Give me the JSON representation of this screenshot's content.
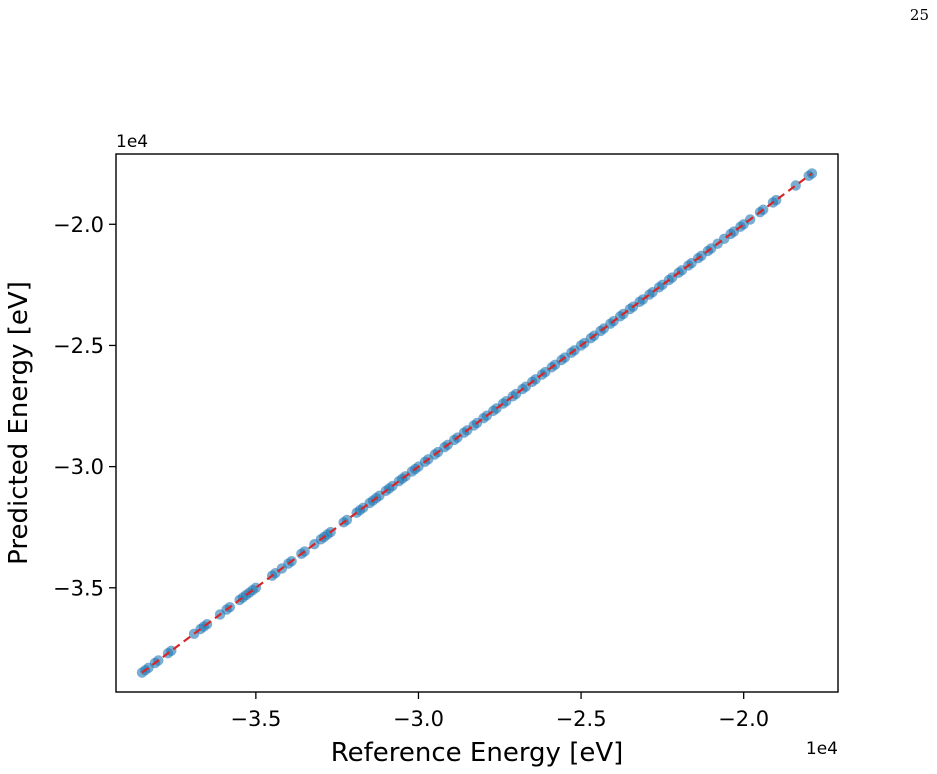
{
  "page": {
    "number": "25"
  },
  "chart_data": {
    "type": "scatter",
    "xlabel": "Reference Energy [eV]",
    "ylabel": "Predicted Energy [eV]",
    "x_offset_label": "1e4",
    "y_offset_label": "1e4",
    "xlim": [
      -3.93,
      -1.71
    ],
    "ylim": [
      -3.93,
      -1.71
    ],
    "x_ticks": [
      -3.5,
      -3.0,
      -2.5,
      -2.0
    ],
    "x_tick_labels": [
      "−3.5",
      "−3.0",
      "−2.5",
      "−2.0"
    ],
    "y_ticks": [
      -3.5,
      -3.0,
      -2.5,
      -2.0
    ],
    "y_tick_labels": [
      "−3.5",
      "−3.0",
      "−2.5",
      "−2.0"
    ],
    "grid": false,
    "reference_line": {
      "style": "dashed",
      "color": "#d62728",
      "from": -3.85,
      "to": -1.79
    },
    "point_color": "#1f77b4",
    "point_alpha": 0.6,
    "series": [
      {
        "points": [
          [
            -3.85,
            -3.85
          ],
          [
            -3.84,
            -3.84
          ],
          [
            -3.83,
            -3.83
          ],
          [
            -3.81,
            -3.81
          ],
          [
            -3.8,
            -3.8
          ],
          [
            -3.77,
            -3.77
          ],
          [
            -3.76,
            -3.76
          ],
          [
            -3.69,
            -3.69
          ],
          [
            -3.67,
            -3.67
          ],
          [
            -3.66,
            -3.66
          ],
          [
            -3.65,
            -3.65
          ],
          [
            -3.61,
            -3.61
          ],
          [
            -3.59,
            -3.59
          ],
          [
            -3.58,
            -3.58
          ],
          [
            -3.55,
            -3.55
          ],
          [
            -3.54,
            -3.54
          ],
          [
            -3.53,
            -3.53
          ],
          [
            -3.52,
            -3.52
          ],
          [
            -3.51,
            -3.51
          ],
          [
            -3.5,
            -3.5
          ],
          [
            -3.45,
            -3.45
          ],
          [
            -3.44,
            -3.44
          ],
          [
            -3.42,
            -3.42
          ],
          [
            -3.4,
            -3.4
          ],
          [
            -3.39,
            -3.39
          ],
          [
            -3.36,
            -3.36
          ],
          [
            -3.35,
            -3.35
          ],
          [
            -3.32,
            -3.32
          ],
          [
            -3.3,
            -3.3
          ],
          [
            -3.29,
            -3.29
          ],
          [
            -3.28,
            -3.28
          ],
          [
            -3.27,
            -3.27
          ],
          [
            -3.23,
            -3.23
          ],
          [
            -3.22,
            -3.22
          ],
          [
            -3.19,
            -3.19
          ],
          [
            -3.18,
            -3.18
          ],
          [
            -3.17,
            -3.17
          ],
          [
            -3.15,
            -3.15
          ],
          [
            -3.14,
            -3.14
          ],
          [
            -3.13,
            -3.13
          ],
          [
            -3.12,
            -3.12
          ],
          [
            -3.1,
            -3.1
          ],
          [
            -3.09,
            -3.09
          ],
          [
            -3.08,
            -3.08
          ],
          [
            -3.06,
            -3.06
          ],
          [
            -3.05,
            -3.05
          ],
          [
            -3.04,
            -3.04
          ],
          [
            -3.02,
            -3.02
          ],
          [
            -3.01,
            -3.01
          ],
          [
            -3.0,
            -3.0
          ],
          [
            -2.98,
            -2.98
          ],
          [
            -2.97,
            -2.97
          ],
          [
            -2.95,
            -2.95
          ],
          [
            -2.94,
            -2.94
          ],
          [
            -2.92,
            -2.92
          ],
          [
            -2.91,
            -2.91
          ],
          [
            -2.89,
            -2.89
          ],
          [
            -2.88,
            -2.88
          ],
          [
            -2.86,
            -2.86
          ],
          [
            -2.85,
            -2.85
          ],
          [
            -2.83,
            -2.83
          ],
          [
            -2.82,
            -2.82
          ],
          [
            -2.8,
            -2.8
          ],
          [
            -2.79,
            -2.79
          ],
          [
            -2.77,
            -2.77
          ],
          [
            -2.76,
            -2.76
          ],
          [
            -2.74,
            -2.74
          ],
          [
            -2.73,
            -2.73
          ],
          [
            -2.71,
            -2.71
          ],
          [
            -2.7,
            -2.7
          ],
          [
            -2.68,
            -2.68
          ],
          [
            -2.67,
            -2.67
          ],
          [
            -2.65,
            -2.65
          ],
          [
            -2.64,
            -2.64
          ],
          [
            -2.62,
            -2.62
          ],
          [
            -2.61,
            -2.61
          ],
          [
            -2.59,
            -2.59
          ],
          [
            -2.58,
            -2.58
          ],
          [
            -2.56,
            -2.56
          ],
          [
            -2.55,
            -2.55
          ],
          [
            -2.53,
            -2.53
          ],
          [
            -2.52,
            -2.52
          ],
          [
            -2.5,
            -2.5
          ],
          [
            -2.49,
            -2.49
          ],
          [
            -2.47,
            -2.47
          ],
          [
            -2.46,
            -2.46
          ],
          [
            -2.44,
            -2.44
          ],
          [
            -2.43,
            -2.43
          ],
          [
            -2.41,
            -2.41
          ],
          [
            -2.4,
            -2.4
          ],
          [
            -2.38,
            -2.38
          ],
          [
            -2.37,
            -2.37
          ],
          [
            -2.35,
            -2.35
          ],
          [
            -2.34,
            -2.34
          ],
          [
            -2.32,
            -2.32
          ],
          [
            -2.31,
            -2.31
          ],
          [
            -2.29,
            -2.29
          ],
          [
            -2.28,
            -2.28
          ],
          [
            -2.26,
            -2.26
          ],
          [
            -2.25,
            -2.25
          ],
          [
            -2.23,
            -2.23
          ],
          [
            -2.22,
            -2.22
          ],
          [
            -2.2,
            -2.2
          ],
          [
            -2.19,
            -2.19
          ],
          [
            -2.17,
            -2.17
          ],
          [
            -2.16,
            -2.16
          ],
          [
            -2.14,
            -2.14
          ],
          [
            -2.13,
            -2.13
          ],
          [
            -2.11,
            -2.11
          ],
          [
            -2.1,
            -2.1
          ],
          [
            -2.08,
            -2.08
          ],
          [
            -2.06,
            -2.06
          ],
          [
            -2.04,
            -2.04
          ],
          [
            -2.03,
            -2.03
          ],
          [
            -2.01,
            -2.01
          ],
          [
            -2.0,
            -2.0
          ],
          [
            -1.98,
            -1.98
          ],
          [
            -1.95,
            -1.95
          ],
          [
            -1.94,
            -1.94
          ],
          [
            -1.91,
            -1.91
          ],
          [
            -1.9,
            -1.9
          ],
          [
            -1.84,
            -1.84
          ],
          [
            -1.8,
            -1.8
          ],
          [
            -1.79,
            -1.79
          ]
        ]
      }
    ]
  }
}
